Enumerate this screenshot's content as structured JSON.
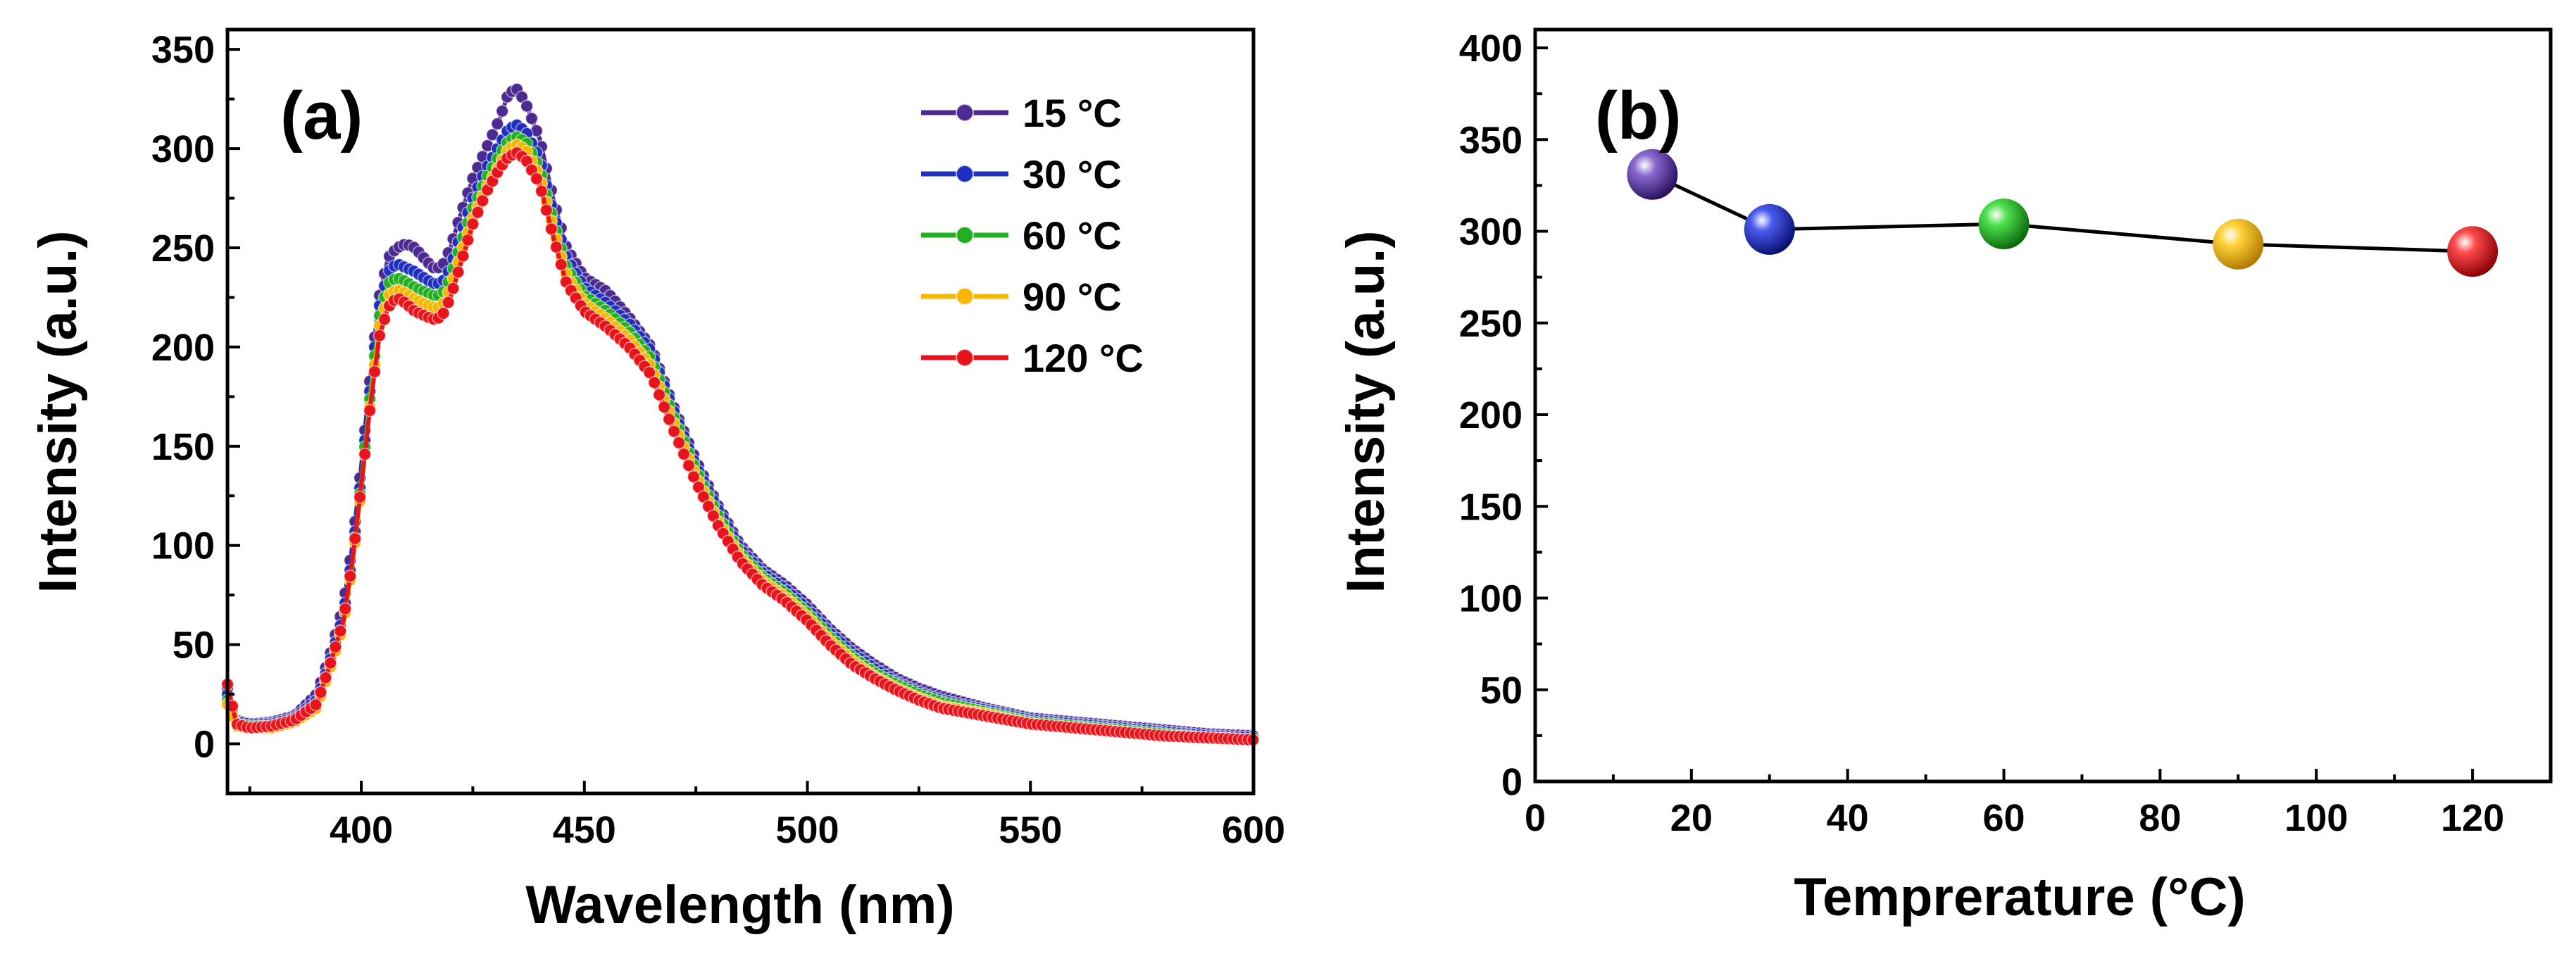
{
  "chart_data": [
    {
      "type": "line",
      "panel_label": "(a)",
      "title": "",
      "xlabel": "Wavelength (nm)",
      "ylabel": "Intensity (a.u.)",
      "xlim": [
        370,
        600
      ],
      "ylim": [
        -25,
        360
      ],
      "xticks": [
        "400",
        "450",
        "500",
        "550",
        "600"
      ],
      "xtick_values": [
        400,
        450,
        500,
        550,
        600
      ],
      "yticks": [
        "0",
        "50",
        "100",
        "150",
        "200",
        "250",
        "300",
        "350"
      ],
      "ytick_values": [
        0,
        50,
        100,
        150,
        200,
        250,
        300,
        350
      ],
      "legend_position": "top-right",
      "x": [
        370,
        372,
        375,
        380,
        385,
        390,
        393,
        396,
        398,
        400,
        402,
        404,
        406,
        408,
        410,
        412,
        414,
        416,
        418,
        420,
        422,
        425,
        428,
        431,
        433,
        435,
        437,
        440,
        443,
        446,
        450,
        455,
        460,
        465,
        470,
        475,
        480,
        485,
        490,
        495,
        500,
        505,
        510,
        515,
        520,
        525,
        530,
        540,
        550,
        560,
        570,
        580,
        590,
        600
      ],
      "series": [
        {
          "name": "15 °C",
          "color": "#4b2a91",
          "values": [
            28,
            12,
            10,
            11,
            14,
            25,
            45,
            70,
            100,
            140,
            185,
            225,
            245,
            250,
            252,
            250,
            245,
            240,
            240,
            250,
            265,
            285,
            300,
            315,
            328,
            330,
            322,
            305,
            275,
            250,
            235,
            228,
            215,
            200,
            170,
            143,
            120,
            100,
            88,
            80,
            70,
            58,
            48,
            40,
            33,
            28,
            24,
            18,
            13,
            11,
            9,
            7,
            5,
            4
          ]
        },
        {
          "name": "30 °C",
          "color": "#1f2fbf",
          "values": [
            25,
            11,
            10,
            10,
            13,
            22,
            42,
            65,
            95,
            135,
            180,
            220,
            238,
            242,
            240,
            238,
            235,
            232,
            232,
            240,
            255,
            275,
            290,
            302,
            310,
            312,
            308,
            295,
            268,
            245,
            230,
            222,
            212,
            198,
            168,
            140,
            118,
            98,
            86,
            78,
            68,
            56,
            46,
            38,
            31,
            26,
            22,
            17,
            12,
            10,
            8,
            6,
            4,
            3
          ]
        },
        {
          "name": "60 °C",
          "color": "#22b022",
          "values": [
            22,
            10,
            9,
            9,
            12,
            20,
            40,
            62,
            92,
            132,
            176,
            215,
            232,
            235,
            233,
            230,
            228,
            226,
            226,
            235,
            250,
            270,
            285,
            297,
            304,
            306,
            303,
            290,
            264,
            240,
            226,
            218,
            208,
            194,
            165,
            138,
            115,
            96,
            84,
            76,
            66,
            54,
            44,
            36,
            30,
            25,
            21,
            16,
            11,
            9,
            7,
            5,
            3,
            2
          ]
        },
        {
          "name": "90 °C",
          "color": "#f5b700",
          "values": [
            20,
            9,
            8,
            8,
            11,
            18,
            38,
            60,
            90,
            128,
            172,
            210,
            226,
            229,
            227,
            224,
            222,
            220,
            220,
            230,
            245,
            265,
            280,
            292,
            300,
            302,
            299,
            286,
            260,
            236,
            222,
            214,
            204,
            190,
            162,
            135,
            112,
            94,
            82,
            74,
            64,
            52,
            42,
            34,
            28,
            23,
            19,
            15,
            10,
            8,
            6,
            4,
            3,
            2
          ]
        },
        {
          "name": "120 °C",
          "color": "#e8141c",
          "values": [
            30,
            10,
            8,
            9,
            12,
            20,
            40,
            62,
            92,
            130,
            170,
            205,
            220,
            225,
            222,
            218,
            216,
            214,
            215,
            225,
            240,
            262,
            278,
            290,
            296,
            298,
            294,
            282,
            256,
            232,
            218,
            210,
            200,
            186,
            158,
            132,
            110,
            92,
            80,
            72,
            62,
            50,
            40,
            33,
            27,
            22,
            18,
            14,
            10,
            8,
            6,
            4,
            3,
            2
          ]
        }
      ]
    },
    {
      "type": "scatter",
      "panel_label": "(b)",
      "title": "",
      "xlabel": "Temprerature (°C)",
      "ylabel": "Intensity (a.u.)",
      "xlim": [
        0,
        130
      ],
      "ylim": [
        0,
        410
      ],
      "xticks": [
        "0",
        "20",
        "40",
        "60",
        "80",
        "100",
        "120"
      ],
      "xtick_values": [
        0,
        20,
        40,
        60,
        80,
        100,
        120
      ],
      "yticks": [
        "0",
        "50",
        "100",
        "150",
        "200",
        "250",
        "300",
        "350",
        "400"
      ],
      "ytick_values": [
        0,
        50,
        100,
        150,
        200,
        250,
        300,
        350,
        400
      ],
      "x": [
        15,
        30,
        60,
        90,
        120
      ],
      "values": [
        331,
        301,
        304,
        293,
        289
      ],
      "point_colors": [
        "#4b2a91",
        "#1f2fbf",
        "#22b022",
        "#f5b700",
        "#e8141c"
      ],
      "connected": true
    }
  ]
}
